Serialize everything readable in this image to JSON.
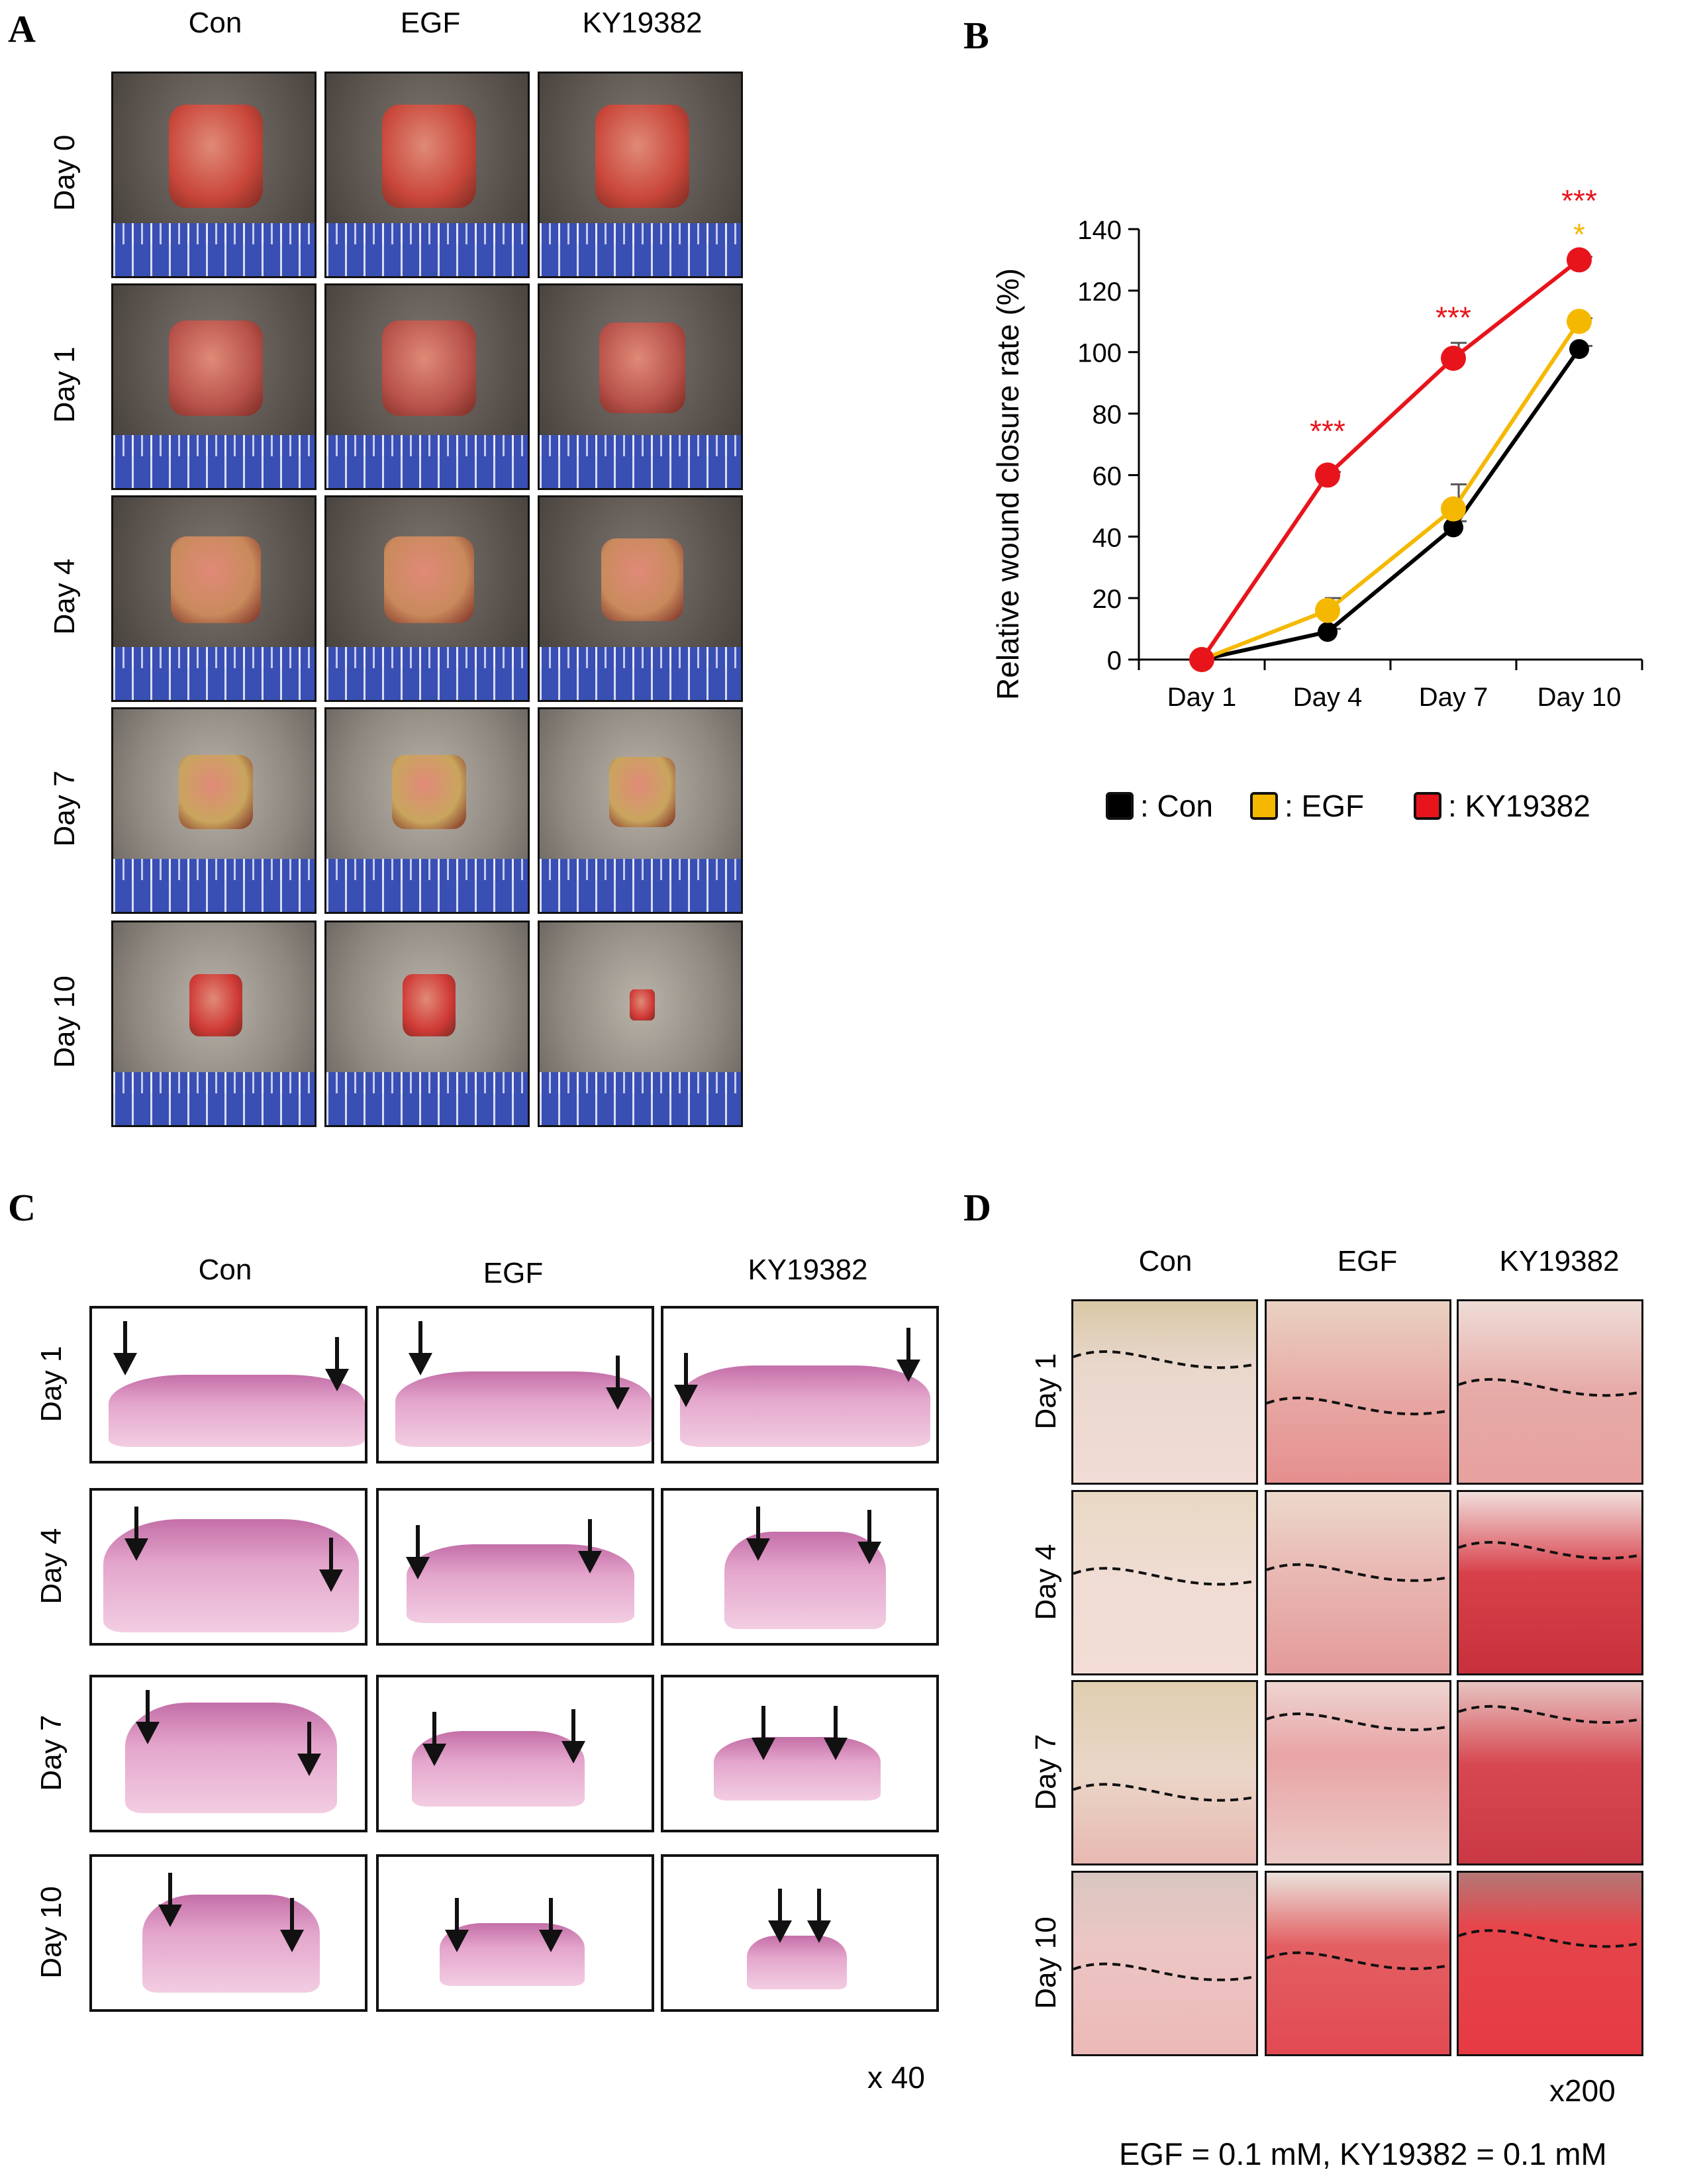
{
  "panels": {
    "a": "A",
    "b": "B",
    "c": "C",
    "d": "D"
  },
  "panel_a": {
    "columns": [
      "Con",
      "EGF",
      "KY19382"
    ],
    "rows": [
      "Day 0",
      "Day 1",
      "Day 4",
      "Day 7",
      "Day 10"
    ]
  },
  "panel_c": {
    "columns": [
      "Con",
      "EGF",
      "KY19382"
    ],
    "rows": [
      "Day 1",
      "Day 4",
      "Day 7",
      "Day 10"
    ],
    "magnification": "x 40"
  },
  "panel_d": {
    "columns": [
      "Con",
      "EGF",
      "KY19382"
    ],
    "rows": [
      "Day 1",
      "Day 4",
      "Day 7",
      "Day 10"
    ],
    "magnification": "x200"
  },
  "footnote": "EGF = 0.1 mM, KY19382 = 0.1 mM",
  "chart_data": {
    "type": "line",
    "title": "",
    "xlabel": "",
    "ylabel": "Relative wound closure rate (%)",
    "categories": [
      "Day 1",
      "Day 4",
      "Day 7",
      "Day 10"
    ],
    "ylim": [
      0,
      140
    ],
    "yticks": [
      0,
      20,
      40,
      60,
      80,
      100,
      120,
      140
    ],
    "yticklabels": [
      "0",
      "20",
      "40",
      "60",
      "80",
      "100",
      "120",
      "140"
    ],
    "series": [
      {
        "name": "Con",
        "legend_label": ": Con",
        "color": "#000000",
        "values": [
          0,
          9,
          43,
          101
        ],
        "errors": [
          0,
          1,
          2,
          1
        ]
      },
      {
        "name": "EGF",
        "legend_label": ": EGF",
        "color": "#f5b800",
        "values": [
          0,
          16,
          49,
          110
        ],
        "errors": [
          0,
          4,
          8,
          1
        ]
      },
      {
        "name": "KY19382",
        "legend_label": ": KY19382",
        "color": "#e8141b",
        "values": [
          0,
          60,
          98,
          130
        ],
        "errors": [
          0,
          1,
          5,
          1
        ]
      }
    ],
    "annotations": [
      {
        "text": "***",
        "category": "Day 4",
        "color": "#e8141b",
        "y": 76
      },
      {
        "text": "***",
        "category": "Day 7",
        "color": "#e8141b",
        "y": 113
      },
      {
        "text": "***",
        "category": "Day 10",
        "color": "#e8141b",
        "y": 151
      },
      {
        "text": "*",
        "category": "Day 10",
        "color": "#f5b800",
        "y": 140
      }
    ]
  }
}
